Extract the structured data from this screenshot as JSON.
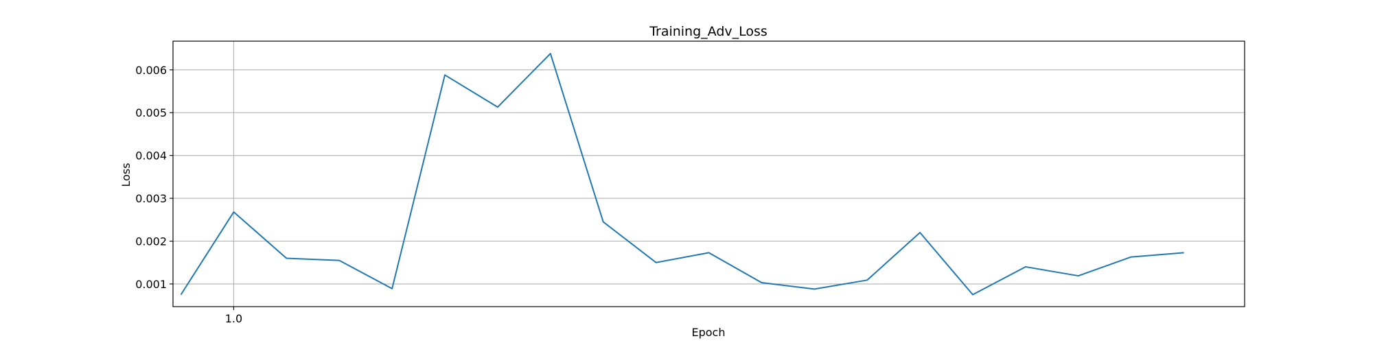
{
  "chart_data": {
    "type": "line",
    "title": "Training_Adv_Loss",
    "xlabel": "Epoch",
    "ylabel": "Loss",
    "xlim": [
      -0.15,
      20.15
    ],
    "ylim": [
      0.00047,
      0.00667
    ],
    "x_ticks": [
      1.0
    ],
    "x_tick_labels": [
      "1.0"
    ],
    "y_ticks": [
      0.001,
      0.002,
      0.003,
      0.004,
      0.005,
      0.006
    ],
    "y_tick_labels": [
      "0.001",
      "0.002",
      "0.003",
      "0.004",
      "0.005",
      "0.006"
    ],
    "grid": true,
    "line_color": "#1f77b4",
    "series": [
      {
        "x": [
          0,
          1,
          2,
          3,
          4,
          5,
          6,
          7,
          8,
          9,
          10,
          11,
          12,
          13,
          14,
          15,
          16,
          17,
          18,
          19
        ],
        "values": [
          0.00075,
          0.00268,
          0.0016,
          0.00155,
          0.00089,
          0.00588,
          0.00513,
          0.00638,
          0.00245,
          0.0015,
          0.00173,
          0.00103,
          0.00088,
          0.00109,
          0.0022,
          0.00075,
          0.0014,
          0.00119,
          0.00163,
          0.00173
        ]
      }
    ]
  }
}
